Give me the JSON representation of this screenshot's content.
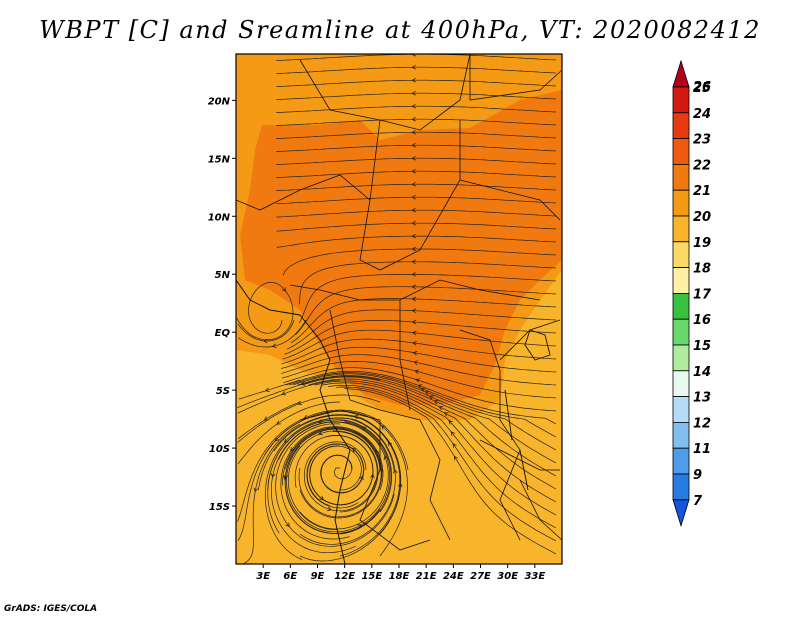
{
  "title": "WBPT [C] and Sreamline at 400hPa, VT: 2020082412",
  "credit": "GrADS: IGES/COLA",
  "map": {
    "lon_range": [
      0,
      36
    ],
    "lat_range": [
      -20,
      24
    ],
    "lat_ticks": [
      {
        "label": "20N",
        "value": 20
      },
      {
        "label": "15N",
        "value": 15
      },
      {
        "label": "10N",
        "value": 10
      },
      {
        "label": "5N",
        "value": 5
      },
      {
        "label": "EQ",
        "value": 0
      },
      {
        "label": "5S",
        "value": -5
      },
      {
        "label": "10S",
        "value": -10
      },
      {
        "label": "15S",
        "value": -15
      }
    ],
    "lon_ticks": [
      {
        "label": "3E",
        "value": 3
      },
      {
        "label": "6E",
        "value": 6
      },
      {
        "label": "9E",
        "value": 9
      },
      {
        "label": "12E",
        "value": 12
      },
      {
        "label": "15E",
        "value": 15
      },
      {
        "label": "18E",
        "value": 18
      },
      {
        "label": "21E",
        "value": 21
      },
      {
        "label": "24E",
        "value": 24
      },
      {
        "label": "27E",
        "value": 27
      },
      {
        "label": "30E",
        "value": 30
      },
      {
        "label": "33E",
        "value": 33
      }
    ]
  },
  "colorbar": {
    "labels": [
      "26",
      "25",
      "24",
      "23",
      "22",
      "21",
      "20",
      "19",
      "18",
      "17",
      "16",
      "15",
      "14",
      "13",
      "12",
      "11",
      "9",
      "7"
    ],
    "colors": [
      "#b2001a",
      "#d41a10",
      "#e83a10",
      "#f05a10",
      "#f07a10",
      "#f49a14",
      "#f8b42a",
      "#fcd864",
      "#fff0a8",
      "#38c040",
      "#6ad86a",
      "#b0eca0",
      "#e8faf0",
      "#b4dcf6",
      "#82beee",
      "#4e9cea",
      "#2a7ae4",
      "#1455dc"
    ]
  },
  "field_colors": {
    "warm": "#f07a10",
    "mid": "#f49a14",
    "cool": "#f8b42a"
  }
}
